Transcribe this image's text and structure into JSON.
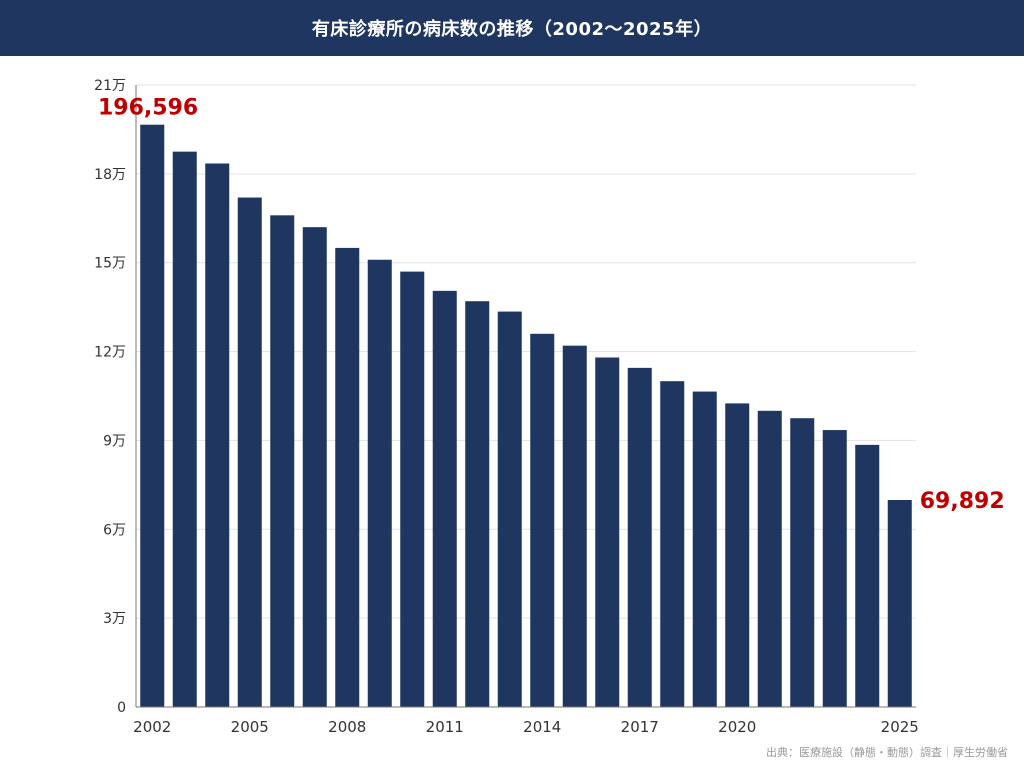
{
  "title": "有床診療所の病床数の推移（2002〜2025年）",
  "source": "出典：医療施設（静態・動態）調査｜厚生労働省",
  "colors": {
    "header": "#1f3660",
    "bar": "#1f3660",
    "highlight": "#c00000",
    "grid": "#e3e3e3",
    "axis": "#777777",
    "tick_text": "#333333"
  },
  "chart_data": {
    "type": "bar",
    "categories": [
      "2002",
      "2003",
      "2004",
      "2005",
      "2006",
      "2007",
      "2008",
      "2009",
      "2010",
      "2011",
      "2012",
      "2013",
      "2014",
      "2015",
      "2016",
      "2017",
      "2018",
      "2019",
      "2020",
      "2021",
      "2022",
      "2023",
      "2024",
      "2025"
    ],
    "values": [
      196596,
      187500,
      183500,
      172000,
      166000,
      162000,
      155000,
      151000,
      147000,
      140500,
      137000,
      133500,
      126000,
      122000,
      118000,
      114500,
      110000,
      106500,
      102500,
      100000,
      97500,
      93500,
      88500,
      69892
    ],
    "x_tick_labels": [
      "2002",
      "2005",
      "2008",
      "2011",
      "2014",
      "2017",
      "2020",
      "2025"
    ],
    "y_tick_labels": [
      "0",
      "3万",
      "6万",
      "9万",
      "12万",
      "15万",
      "18万",
      "21万"
    ],
    "ylim": [
      0,
      210000
    ],
    "annotations": [
      {
        "category": "2002",
        "text": "196,596"
      },
      {
        "category": "2025",
        "text": "69,892"
      }
    ],
    "grid": true
  }
}
